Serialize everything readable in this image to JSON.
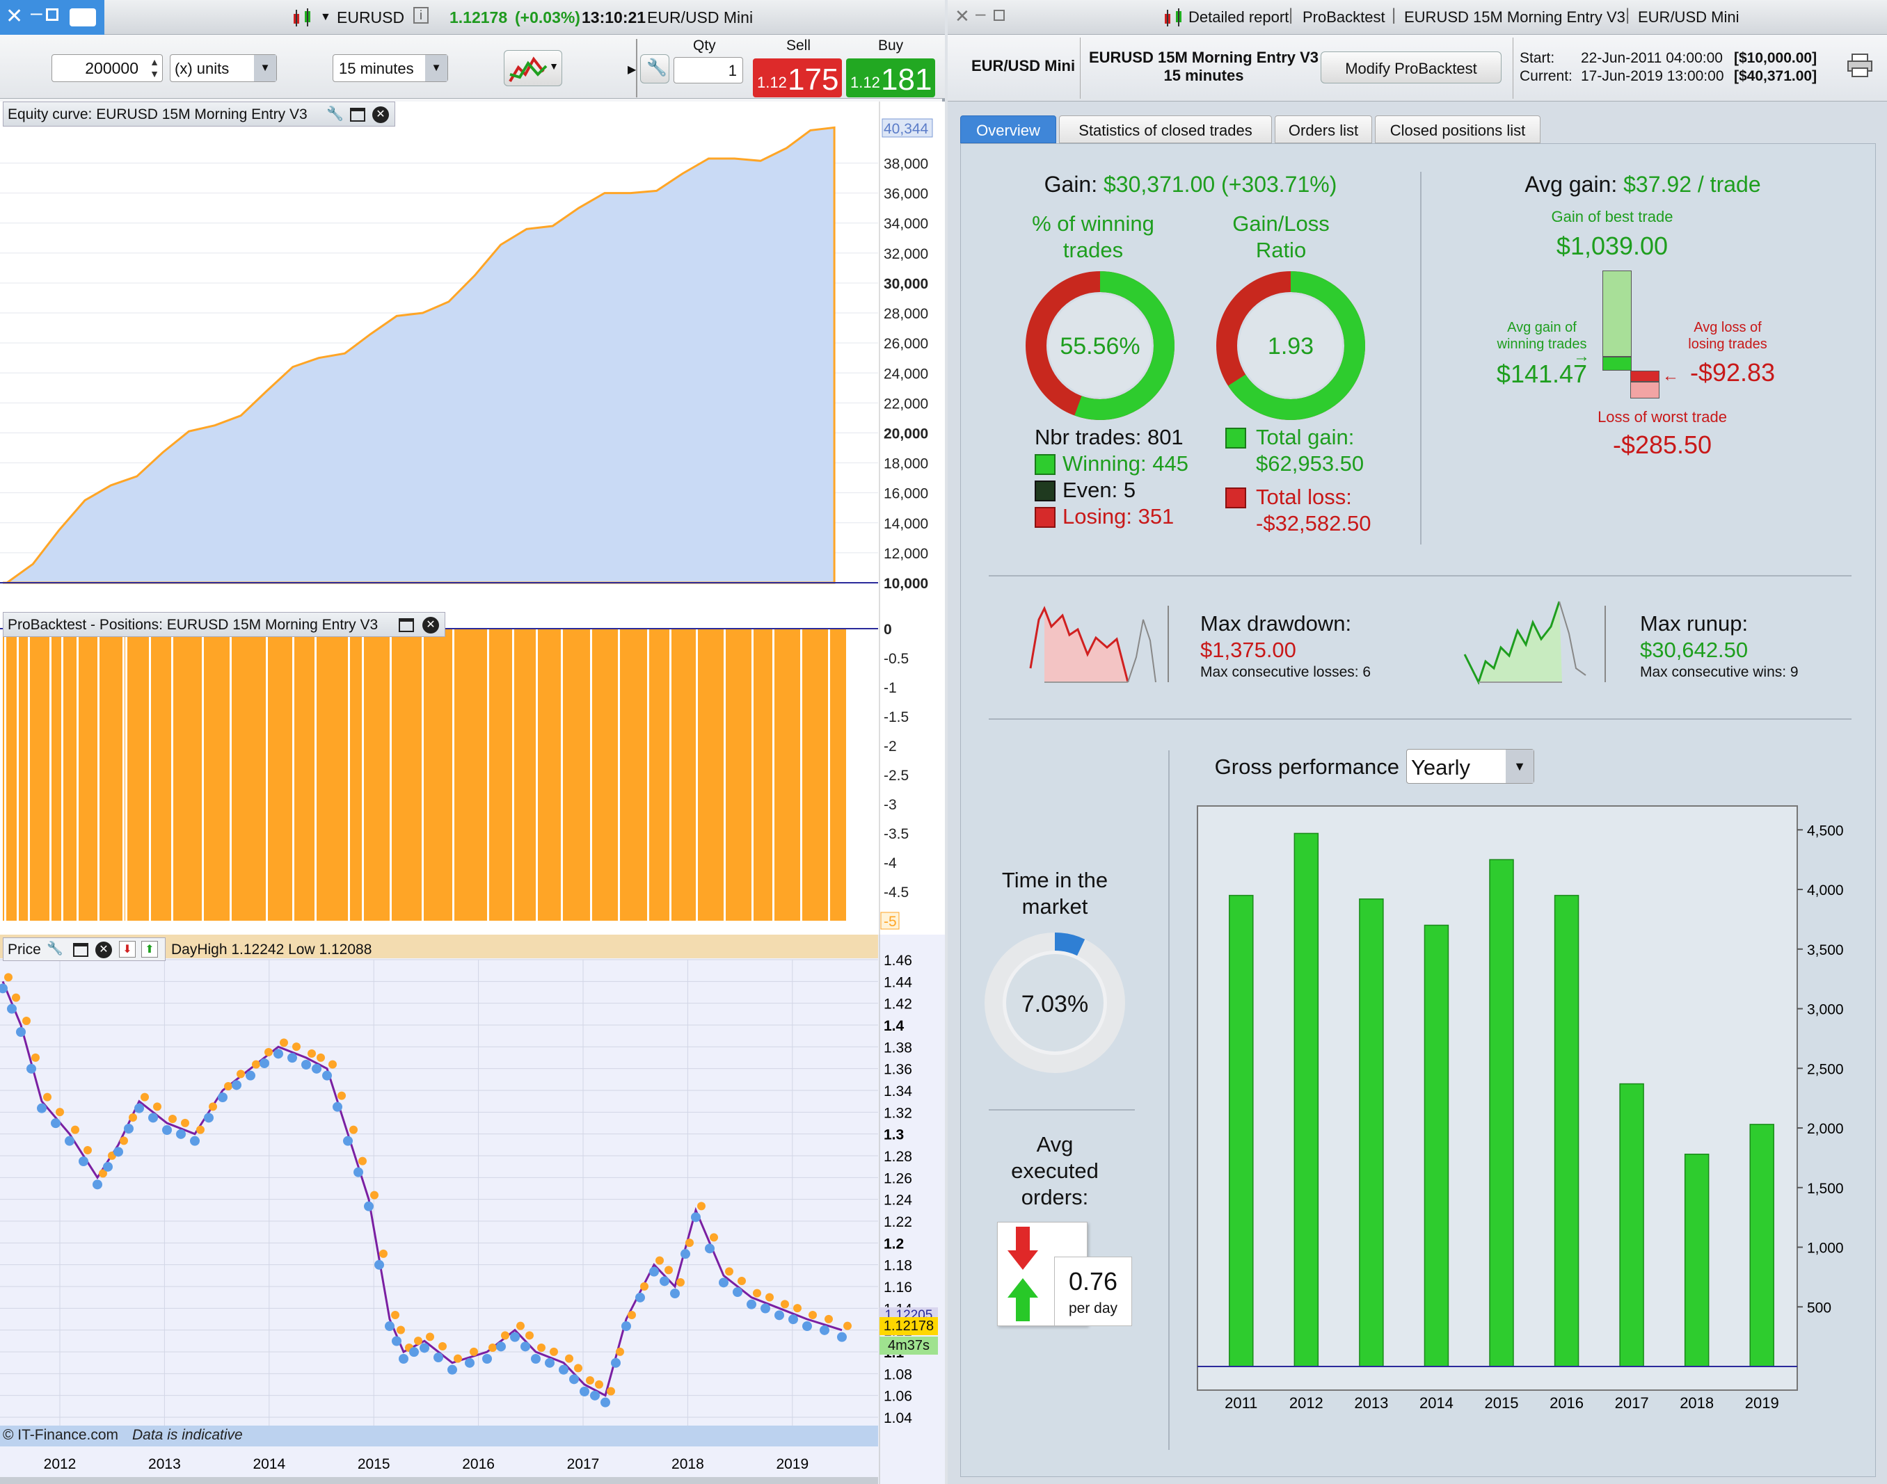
{
  "left_window": {
    "title": {
      "symbol": "EURUSD",
      "price": "1.12178",
      "change": "(+0.03%)",
      "time": "13:10:21",
      "instrument": "EUR/USD Mini"
    },
    "toolbar": {
      "quantity": "200000",
      "units_label": "(x) units",
      "timeframe": "15 minutes",
      "qty_header": "Qty",
      "qty_value": "1",
      "sell_header": "Sell",
      "buy_header": "Buy",
      "sell_price_small": "1.12",
      "sell_price_big": "175",
      "buy_price_small": "1.12",
      "buy_price_big": "181"
    },
    "equity_panel": {
      "title": "Equity curve: EURUSD 15M Morning Entry V3",
      "axis": [
        "40,344",
        "38,000",
        "36,000",
        "34,000",
        "32,000",
        "30,000",
        "28,000",
        "26,000",
        "24,000",
        "22,000",
        "20,000",
        "18,000",
        "16,000",
        "14,000",
        "12,000",
        "10,000"
      ]
    },
    "positions_panel": {
      "title": "ProBacktest - Positions: EURUSD 15M Morning Entry V3",
      "axis": [
        "0",
        "-0.5",
        "-1",
        "-1.5",
        "-2",
        "-2.5",
        "-3",
        "-3.5",
        "-4",
        "-4.5",
        "-5"
      ]
    },
    "price_panel": {
      "title": "Price",
      "info": "DayHigh 1.12242 Low 1.12088",
      "axis": [
        "1.46",
        "1.44",
        "1.42",
        "1.4",
        "1.38",
        "1.36",
        "1.34",
        "1.32",
        "1.3",
        "1.28",
        "1.26",
        "1.24",
        "1.22",
        "1.2",
        "1.18",
        "1.16",
        "1.14",
        "1.12",
        "1.1",
        "1.08",
        "1.06",
        "1.04"
      ],
      "price_tag_ask": "1.12205",
      "price_tag": "1.12178",
      "countdown": "4m37s",
      "footer": "© IT-Finance.com",
      "footer_note": "Data is indicative",
      "years": [
        "2012",
        "2013",
        "2014",
        "2015",
        "2016",
        "2017",
        "2018",
        "2019"
      ]
    }
  },
  "right_window": {
    "title": {
      "report": "Detailed report",
      "tool": "ProBacktest",
      "strategy": "EURUSD 15M Morning Entry V3",
      "instrument": "EUR/USD Mini"
    },
    "header": {
      "instrument": "EUR/USD Mini",
      "strategy": "EURUSD 15M Morning Entry V3",
      "timeframe": "15 minutes",
      "modify_button": "Modify ProBacktest",
      "start_label": "Start:",
      "start_value": "22-Jun-2011 04:00:00",
      "start_amount": "[$10,000.00]",
      "current_label": "Current:",
      "current_value": "17-Jun-2019 13:00:00",
      "current_amount": "[$40,371.00]"
    },
    "tabs": [
      "Overview",
      "Statistics of closed trades",
      "Orders list",
      "Closed positions list"
    ],
    "overview": {
      "gain_label": "Gain:",
      "gain_value": "$30,371.00 (+303.71%)",
      "winning_pct_label_1": "% of winning",
      "winning_pct_label_2": "trades",
      "winning_pct": "55.56%",
      "winning_pct_value": 0.5556,
      "gl_ratio_label_1": "Gain/Loss",
      "gl_ratio_label_2": "Ratio",
      "gl_ratio": "1.93",
      "gl_ratio_fraction": 0.659,
      "nbr_trades": "Nbr trades: 801",
      "winning": "Winning: 445",
      "even": "Even: 5",
      "losing": "Losing: 351",
      "total_gain_label": "Total gain:",
      "total_gain": "$62,953.50",
      "total_loss_label": "Total loss:",
      "total_loss": "-$32,582.50",
      "avg_gain_label": "Avg gain:",
      "avg_gain_value": "$37.92 / trade",
      "best_trade_label": "Gain of best trade",
      "best_trade": "$1,039.00",
      "avg_win_label_1": "Avg gain of",
      "avg_win_label_2": "winning trades",
      "avg_win": "$141.47",
      "avg_loss_label_1": "Avg loss of",
      "avg_loss_label_2": "losing trades",
      "avg_loss": "-$92.83",
      "worst_trade_label": "Loss of worst trade",
      "worst_trade": "-$285.50",
      "max_drawdown_label": "Max drawdown:",
      "max_drawdown": "$1,375.00",
      "max_consec_losses": "Max consecutive losses: 6",
      "max_runup_label": "Max runup:",
      "max_runup": "$30,642.50",
      "max_consec_wins": "Max consecutive wins: 9",
      "time_in_market_label_1": "Time in the",
      "time_in_market_label_2": "market",
      "time_in_market": "7.03%",
      "time_in_market_value": 0.0703,
      "avg_orders_label_1": "Avg",
      "avg_orders_label_2": "executed",
      "avg_orders_label_3": "orders:",
      "avg_orders": "0.76",
      "avg_orders_unit": "per day",
      "gross_perf_label": "Gross performance",
      "gross_perf_period": "Yearly"
    },
    "colors": {
      "green": "#1e9e1e",
      "red": "#c81818",
      "bar_green": "#2ecc2e",
      "orange": "#ffa526",
      "equity_fill": "#c9daf5"
    }
  },
  "chart_data": [
    {
      "type": "bar",
      "title": "Gross performance",
      "categories": [
        "2011",
        "2012",
        "2013",
        "2014",
        "2015",
        "2016",
        "2017",
        "2018",
        "2019"
      ],
      "values": [
        3950,
        4470,
        3920,
        3700,
        4250,
        3950,
        2370,
        1780,
        2030
      ],
      "ylim": [
        0,
        4700
      ],
      "yticks": [
        "500",
        "1,000",
        "1,500",
        "2,000",
        "2,500",
        "3,000",
        "3,500",
        "4,000",
        "4,500"
      ],
      "ytick_values": [
        500,
        1000,
        1500,
        2000,
        2500,
        3000,
        3500,
        4000,
        4500
      ],
      "legend": "none",
      "grid": false
    },
    {
      "type": "area",
      "title": "Equity curve: EURUSD 15M Morning Entry V3",
      "x": [
        2011.5,
        2012.0,
        2012.5,
        2013.0,
        2013.5,
        2014.0,
        2014.5,
        2015.0,
        2015.5,
        2016.0,
        2016.5,
        2017.0,
        2017.5,
        2018.0,
        2018.5,
        2019.0,
        2019.46
      ],
      "values": [
        10000,
        13500,
        16500,
        18700,
        20500,
        22800,
        25000,
        26600,
        28000,
        30500,
        33600,
        35000,
        36000,
        37300,
        38300,
        39000,
        40371
      ],
      "ylim": [
        10000,
        40800
      ],
      "grid": true
    }
  ]
}
